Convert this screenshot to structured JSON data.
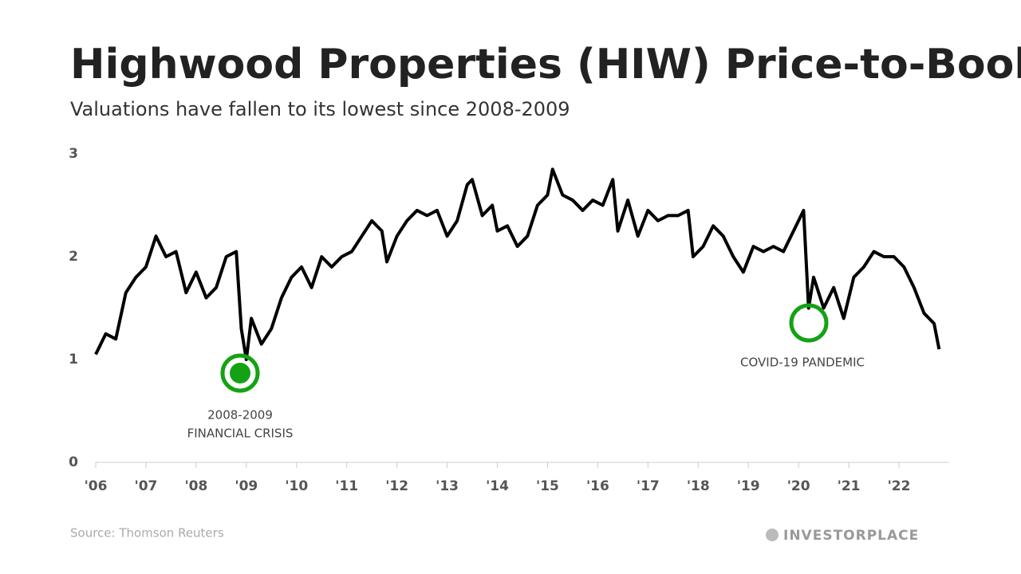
{
  "chart_data": {
    "type": "line",
    "title": "Highwood Properties (HIW) Price-to-Book",
    "subtitle": "Valuations have fallen to its lowest since 2008-2009",
    "x": [
      2006.0,
      2006.2,
      2006.4,
      2006.6,
      2006.8,
      2007.0,
      2007.2,
      2007.4,
      2007.6,
      2007.8,
      2008.0,
      2008.2,
      2008.4,
      2008.6,
      2008.8,
      2008.9,
      2009.0,
      2009.1,
      2009.3,
      2009.5,
      2009.7,
      2009.9,
      2010.1,
      2010.3,
      2010.5,
      2010.7,
      2010.9,
      2011.1,
      2011.3,
      2011.5,
      2011.7,
      2011.8,
      2012.0,
      2012.2,
      2012.4,
      2012.6,
      2012.8,
      2013.0,
      2013.2,
      2013.4,
      2013.5,
      2013.7,
      2013.9,
      2014.0,
      2014.2,
      2014.4,
      2014.6,
      2014.8,
      2015.0,
      2015.1,
      2015.3,
      2015.5,
      2015.7,
      2015.9,
      2016.1,
      2016.3,
      2016.4,
      2016.6,
      2016.8,
      2017.0,
      2017.2,
      2017.4,
      2017.6,
      2017.8,
      2017.9,
      2018.1,
      2018.3,
      2018.5,
      2018.7,
      2018.9,
      2019.1,
      2019.3,
      2019.5,
      2019.7,
      2019.9,
      2020.1,
      2020.2,
      2020.3,
      2020.5,
      2020.7,
      2020.9,
      2021.1,
      2021.3,
      2021.5,
      2021.7,
      2021.9,
      2022.1,
      2022.3,
      2022.5,
      2022.7,
      2022.8
    ],
    "series": [
      {
        "name": "Price-to-Book",
        "color": "#000000",
        "values": [
          1.05,
          1.25,
          1.2,
          1.65,
          1.8,
          1.9,
          2.2,
          2.0,
          2.05,
          1.65,
          1.85,
          1.6,
          1.7,
          2.0,
          2.05,
          1.3,
          1.0,
          1.4,
          1.15,
          1.3,
          1.6,
          1.8,
          1.9,
          1.7,
          2.0,
          1.9,
          2.0,
          2.05,
          2.2,
          2.35,
          2.25,
          1.95,
          2.2,
          2.35,
          2.45,
          2.4,
          2.45,
          2.2,
          2.35,
          2.7,
          2.75,
          2.4,
          2.5,
          2.25,
          2.3,
          2.1,
          2.2,
          2.5,
          2.6,
          2.85,
          2.6,
          2.55,
          2.45,
          2.55,
          2.5,
          2.75,
          2.25,
          2.55,
          2.2,
          2.45,
          2.35,
          2.4,
          2.4,
          2.45,
          2.0,
          2.1,
          2.3,
          2.2,
          2.0,
          1.85,
          2.1,
          2.05,
          2.1,
          2.05,
          2.25,
          2.45,
          1.5,
          1.8,
          1.5,
          1.7,
          1.4,
          1.8,
          1.9,
          2.05,
          2.0,
          2.0,
          1.9,
          1.7,
          1.45,
          1.35,
          1.1
        ]
      }
    ],
    "xlim": [
      2006,
      2022.8
    ],
    "xticks": [
      {
        "value": 2006,
        "label": "'06"
      },
      {
        "value": 2007,
        "label": "'07"
      },
      {
        "value": 2008,
        "label": "'08"
      },
      {
        "value": 2009,
        "label": "'09"
      },
      {
        "value": 2010,
        "label": "'10"
      },
      {
        "value": 2011,
        "label": "'11"
      },
      {
        "value": 2012,
        "label": "'12"
      },
      {
        "value": 2013,
        "label": "'13"
      },
      {
        "value": 2014,
        "label": "'14"
      },
      {
        "value": 2015,
        "label": "'15"
      },
      {
        "value": 2016,
        "label": "'16"
      },
      {
        "value": 2017,
        "label": "'17"
      },
      {
        "value": 2018,
        "label": "'18"
      },
      {
        "value": 2019,
        "label": "'19"
      },
      {
        "value": 2020,
        "label": "'20"
      },
      {
        "value": 2021,
        "label": "'21"
      },
      {
        "value": 2022,
        "label": "'22"
      }
    ],
    "ylim": [
      0,
      3
    ],
    "yticks": [
      0,
      1,
      2,
      3
    ],
    "grid": false,
    "annotations": [
      "2008-2009",
      "FINANCIAL CRISIS",
      "COVID-19 PANDEMIC"
    ]
  },
  "footer": {
    "source": "Source: Thomson Reuters",
    "brand": "INVESTORPLACE"
  }
}
